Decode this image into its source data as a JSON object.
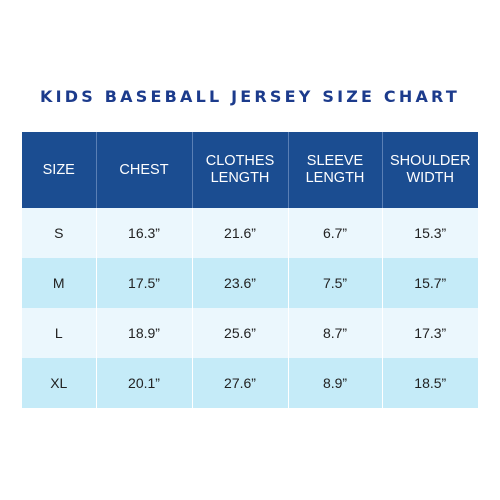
{
  "title": "KIDS BASEBALL JERSEY SIZE CHART",
  "colors": {
    "title": "#1c3b8c",
    "header_bg": "#1b4d91",
    "header_text": "#ffffff",
    "row_light": "#ebf7fd",
    "row_dark": "#c5ebf8"
  },
  "chart_data": {
    "type": "table",
    "title": "KIDS BASEBALL JERSEY SIZE CHART",
    "columns": [
      {
        "lines": [
          "SIZE"
        ]
      },
      {
        "lines": [
          "CHEST"
        ]
      },
      {
        "lines": [
          "CLOTHES",
          "LENGTH"
        ]
      },
      {
        "lines": [
          "SLEEVE",
          "LENGTH"
        ]
      },
      {
        "lines": [
          "SHOULDER",
          "WIDTH"
        ]
      }
    ],
    "rows": [
      [
        "S",
        "16.3”",
        "21.6”",
        "6.7”",
        "15.3”"
      ],
      [
        "M",
        "17.5”",
        "23.6”",
        "7.5”",
        "15.7”"
      ],
      [
        "L",
        "18.9”",
        "25.6”",
        "8.7”",
        "17.3”"
      ],
      [
        "XL",
        "20.1”",
        "27.6”",
        "8.9”",
        "18.5”"
      ]
    ]
  }
}
